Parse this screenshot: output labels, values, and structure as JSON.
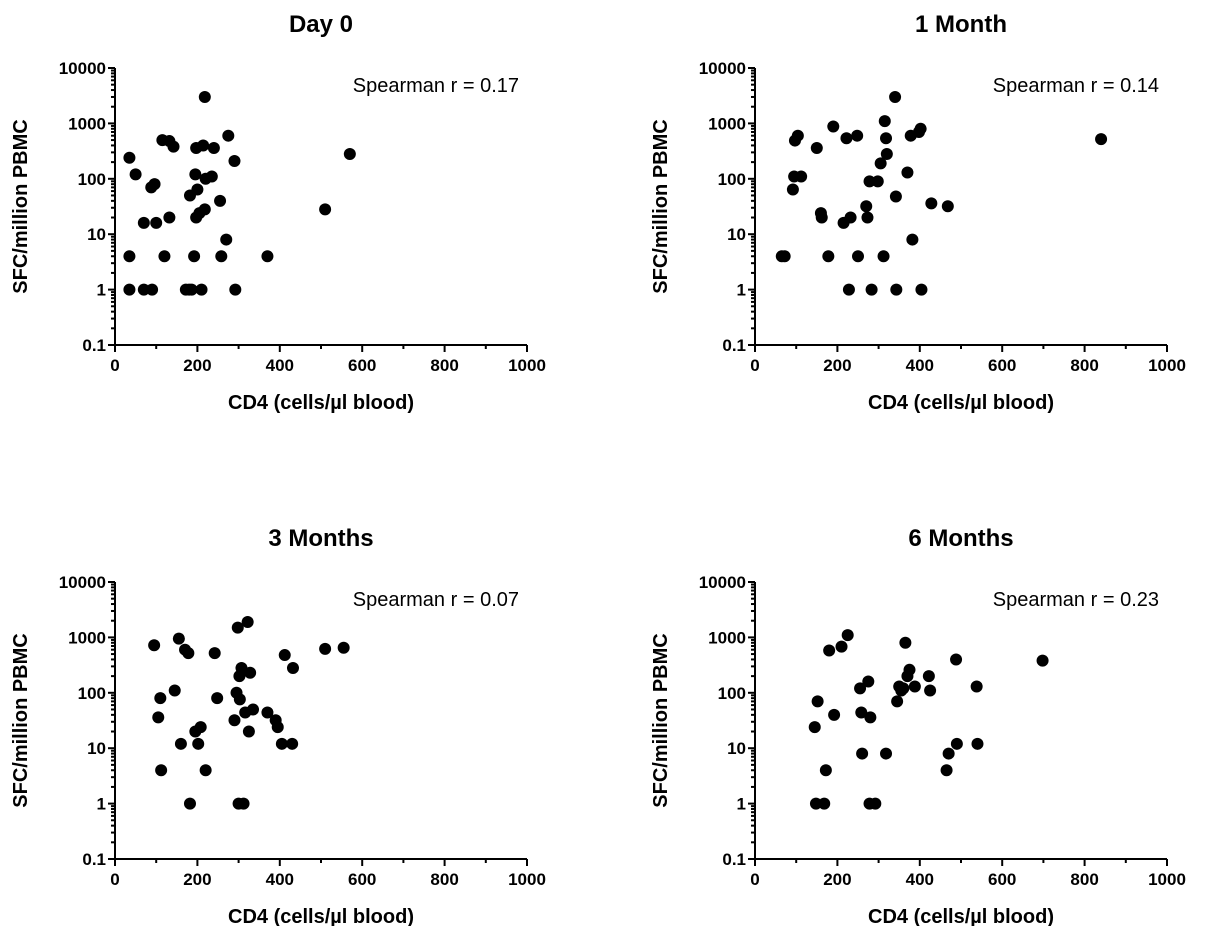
{
  "chart_data": [
    {
      "type": "scatter",
      "title": "Day 0",
      "xlabel": "CD4 (cells/µl blood)",
      "ylabel": "SFC/million PBMC",
      "xlim": [
        0,
        1000
      ],
      "ylim": [
        0.1,
        10000
      ],
      "yscale": "log",
      "x_ticks": [
        "0",
        "200",
        "400",
        "600",
        "800",
        "1000"
      ],
      "y_ticks": [
        "0.1",
        "1",
        "10",
        "100",
        "1000",
        "10000"
      ],
      "annotation": "Spearman r = 0.17",
      "grid": false,
      "points": [
        [
          35,
          4
        ],
        [
          35,
          1
        ],
        [
          35,
          240
        ],
        [
          50,
          120
        ],
        [
          70,
          16
        ],
        [
          70,
          1
        ],
        [
          88,
          70
        ],
        [
          90,
          1
        ],
        [
          96,
          80
        ],
        [
          100,
          16
        ],
        [
          115,
          500
        ],
        [
          120,
          4
        ],
        [
          132,
          480
        ],
        [
          132,
          20
        ],
        [
          142,
          380
        ],
        [
          172,
          1
        ],
        [
          180,
          1
        ],
        [
          182,
          50
        ],
        [
          186,
          1
        ],
        [
          192,
          4
        ],
        [
          195,
          120
        ],
        [
          197,
          20
        ],
        [
          197,
          360
        ],
        [
          200,
          64
        ],
        [
          205,
          24
        ],
        [
          210,
          1
        ],
        [
          214,
          400
        ],
        [
          218,
          3000
        ],
        [
          218,
          28
        ],
        [
          220,
          100
        ],
        [
          235,
          110
        ],
        [
          240,
          360
        ],
        [
          255,
          40
        ],
        [
          258,
          4
        ],
        [
          270,
          8
        ],
        [
          275,
          600
        ],
        [
          290,
          210
        ],
        [
          292,
          1
        ],
        [
          370,
          4
        ],
        [
          510,
          28
        ],
        [
          570,
          280
        ]
      ]
    },
    {
      "type": "scatter",
      "title": "1 Month",
      "xlabel": "CD4 (cells/µl blood)",
      "ylabel": "SFC/million PBMC",
      "xlim": [
        0,
        1000
      ],
      "ylim": [
        0.1,
        10000
      ],
      "yscale": "log",
      "x_ticks": [
        "0",
        "200",
        "400",
        "600",
        "800",
        "1000"
      ],
      "y_ticks": [
        "0.1",
        "1",
        "10",
        "100",
        "1000",
        "10000"
      ],
      "annotation": "Spearman r = 0.14",
      "grid": false,
      "points": [
        [
          65,
          4
        ],
        [
          72,
          4
        ],
        [
          92,
          64
        ],
        [
          95,
          110
        ],
        [
          97,
          490
        ],
        [
          104,
          600
        ],
        [
          112,
          110
        ],
        [
          150,
          360
        ],
        [
          160,
          24
        ],
        [
          162,
          20
        ],
        [
          178,
          4
        ],
        [
          190,
          880
        ],
        [
          215,
          16
        ],
        [
          222,
          540
        ],
        [
          228,
          1
        ],
        [
          232,
          20
        ],
        [
          248,
          600
        ],
        [
          250,
          4
        ],
        [
          270,
          32
        ],
        [
          273,
          20
        ],
        [
          278,
          90
        ],
        [
          283,
          1
        ],
        [
          298,
          90
        ],
        [
          305,
          190
        ],
        [
          312,
          4
        ],
        [
          315,
          1100
        ],
        [
          318,
          540
        ],
        [
          320,
          280
        ],
        [
          340,
          3000
        ],
        [
          342,
          48
        ],
        [
          343,
          1
        ],
        [
          370,
          130
        ],
        [
          378,
          600
        ],
        [
          382,
          8
        ],
        [
          398,
          700
        ],
        [
          402,
          800
        ],
        [
          404,
          1
        ],
        [
          428,
          36
        ],
        [
          468,
          32
        ],
        [
          840,
          520
        ]
      ]
    },
    {
      "type": "scatter",
      "title": "3 Months",
      "xlabel": "CD4 (cells/µl blood)",
      "ylabel": "SFC/million PBMC",
      "xlim": [
        0,
        1000
      ],
      "ylim": [
        0.1,
        10000
      ],
      "yscale": "log",
      "x_ticks": [
        "0",
        "200",
        "400",
        "600",
        "800",
        "1000"
      ],
      "y_ticks": [
        "0.1",
        "1",
        "10",
        "100",
        "1000",
        "10000"
      ],
      "annotation": "Spearman r = 0.07",
      "grid": false,
      "points": [
        [
          95,
          720
        ],
        [
          105,
          36
        ],
        [
          110,
          80
        ],
        [
          112,
          4
        ],
        [
          145,
          110
        ],
        [
          155,
          950
        ],
        [
          160,
          12
        ],
        [
          170,
          600
        ],
        [
          178,
          520
        ],
        [
          182,
          1
        ],
        [
          195,
          20
        ],
        [
          202,
          12
        ],
        [
          208,
          24
        ],
        [
          220,
          4
        ],
        [
          242,
          520
        ],
        [
          248,
          80
        ],
        [
          290,
          32
        ],
        [
          295,
          100
        ],
        [
          298,
          1500
        ],
        [
          300,
          1
        ],
        [
          302,
          200
        ],
        [
          303,
          76
        ],
        [
          307,
          280
        ],
        [
          312,
          1
        ],
        [
          316,
          44
        ],
        [
          322,
          1900
        ],
        [
          325,
          20
        ],
        [
          328,
          230
        ],
        [
          335,
          50
        ],
        [
          370,
          44
        ],
        [
          390,
          32
        ],
        [
          395,
          24
        ],
        [
          405,
          12
        ],
        [
          412,
          480
        ],
        [
          430,
          12
        ],
        [
          432,
          280
        ],
        [
          510,
          620
        ],
        [
          555,
          650
        ]
      ]
    },
    {
      "type": "scatter",
      "title": "6 Months",
      "xlabel": "CD4 (cells/µl blood)",
      "ylabel": "SFC/million PBMC",
      "xlim": [
        0,
        1000
      ],
      "ylim": [
        0.1,
        10000
      ],
      "yscale": "log",
      "x_ticks": [
        "0",
        "200",
        "400",
        "600",
        "800",
        "1000"
      ],
      "y_ticks": [
        "0.1",
        "1",
        "10",
        "100",
        "1000",
        "10000"
      ],
      "annotation": "Spearman r = 0.23",
      "grid": false,
      "points": [
        [
          145,
          24
        ],
        [
          148,
          1
        ],
        [
          152,
          70
        ],
        [
          168,
          1
        ],
        [
          172,
          4
        ],
        [
          180,
          580
        ],
        [
          192,
          40
        ],
        [
          210,
          680
        ],
        [
          225,
          1100
        ],
        [
          255,
          120
        ],
        [
          258,
          44
        ],
        [
          260,
          8
        ],
        [
          275,
          160
        ],
        [
          278,
          1
        ],
        [
          280,
          36
        ],
        [
          292,
          1
        ],
        [
          318,
          8
        ],
        [
          345,
          70
        ],
        [
          350,
          130
        ],
        [
          355,
          110
        ],
        [
          360,
          120
        ],
        [
          365,
          800
        ],
        [
          370,
          200
        ],
        [
          375,
          260
        ],
        [
          388,
          130
        ],
        [
          422,
          200
        ],
        [
          425,
          110
        ],
        [
          465,
          4
        ],
        [
          470,
          8
        ],
        [
          488,
          400
        ],
        [
          490,
          12
        ],
        [
          538,
          130
        ],
        [
          540,
          12
        ],
        [
          698,
          380
        ]
      ]
    }
  ]
}
